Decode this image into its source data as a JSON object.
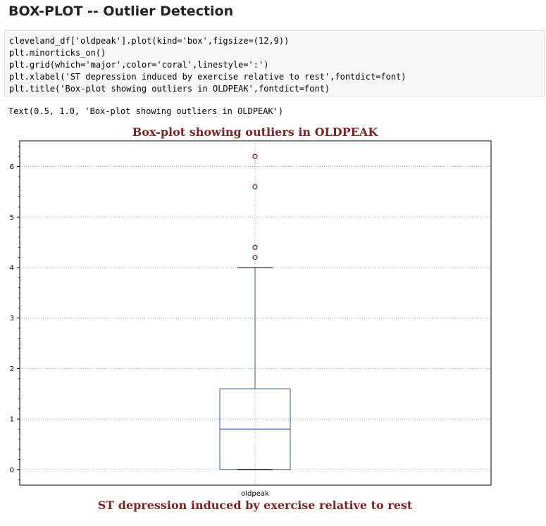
{
  "page": {
    "heading": "BOX-PLOT -- Outlier Detection"
  },
  "code_cell": {
    "lines": [
      "cleveland_df['oldpeak'].plot(kind='box',figsize=(12,9))",
      "plt.minorticks_on()",
      "plt.grid(which='major',color='coral',linestyle=':')",
      "plt.xlabel('ST depression induced by exercise relative to rest',fontdict=font)",
      "plt.title('Box-plot showing outliers in OLDPEAK',fontdict=font)"
    ]
  },
  "output": {
    "text": "Text(0.5, 1.0, 'Box-plot showing outliers in OLDPEAK')"
  },
  "colors": {
    "box": "#3b5b7d",
    "median": "#3b5b9b",
    "whisker": "#3b5b7d",
    "cap": "#000000",
    "outlier_edge": "#6b1e1e",
    "grid": "#9a9a9a",
    "title": "#7b2424",
    "xlabel": "#7b2424"
  },
  "chart_data": {
    "type": "box",
    "title": "Box-plot showing outliers in OLDPEAK",
    "xlabel": "ST depression induced by exercise relative to rest",
    "ylabel": "",
    "categories": [
      "oldpeak"
    ],
    "y_ticks": [
      0,
      1,
      2,
      3,
      4,
      5,
      6
    ],
    "ylim": [
      -0.31,
      6.51
    ],
    "grid": true,
    "minor_ticks": true,
    "box": {
      "min": 0.0,
      "q1": 0.0,
      "median": 0.8,
      "q3": 1.6,
      "max": 4.0
    },
    "outliers": [
      4.2,
      4.4,
      5.6,
      6.2
    ]
  }
}
